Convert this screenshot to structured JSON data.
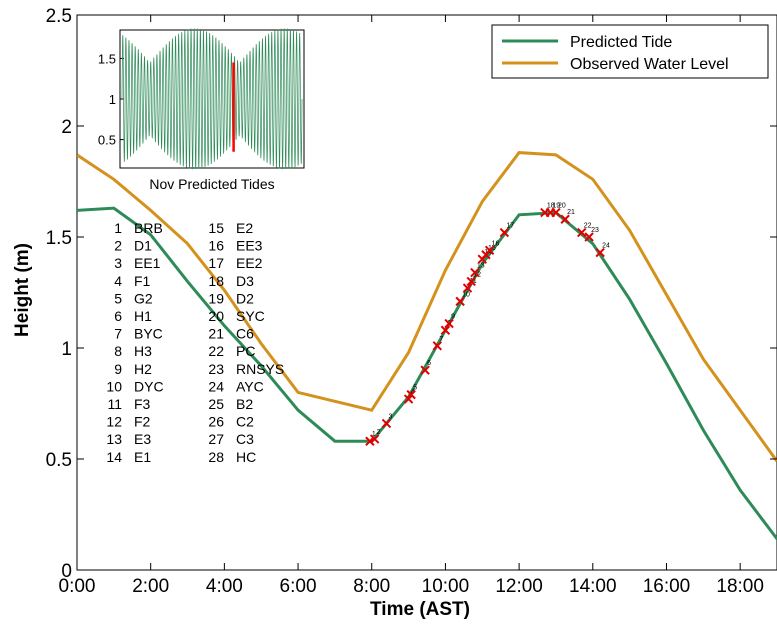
{
  "chart_data": {
    "type": "line",
    "xlabel": "Time (AST)",
    "ylabel": "Height (m)",
    "xlim": [
      0,
      19
    ],
    "ylim": [
      0,
      2.5
    ],
    "x_ticks": [
      0,
      2,
      4,
      6,
      8,
      10,
      12,
      14,
      16,
      18
    ],
    "x_tick_labels": [
      "0:00",
      "2:00",
      "4:00",
      "6:00",
      "8:00",
      "10:00",
      "12:00",
      "14:00",
      "16:00",
      "18:00"
    ],
    "y_ticks": [
      0,
      0.5,
      1,
      1.5,
      2,
      2.5
    ],
    "y_tick_labels": [
      "0",
      "0.5",
      "1",
      "1.5",
      "2",
      "2.5"
    ],
    "legend_position": "top-right",
    "series": [
      {
        "name": "Predicted Tide",
        "color": "#2e8b57",
        "x": [
          0,
          1,
          2,
          3,
          4,
          5,
          6,
          7,
          8,
          9,
          10,
          11,
          12,
          13,
          14,
          15,
          16,
          17,
          18,
          19
        ],
        "y": [
          1.62,
          1.63,
          1.51,
          1.3,
          1.1,
          0.92,
          0.72,
          0.58,
          0.58,
          0.78,
          1.08,
          1.38,
          1.6,
          1.61,
          1.47,
          1.22,
          0.93,
          0.63,
          0.36,
          0.14
        ]
      },
      {
        "name": "Observed Water Level",
        "color": "#d4921c",
        "x": [
          0,
          1,
          2,
          3,
          4,
          5,
          6,
          7,
          8,
          9,
          10,
          11,
          12,
          13,
          14,
          15,
          16,
          17,
          18,
          19
        ],
        "y": [
          1.87,
          1.76,
          1.62,
          1.47,
          1.26,
          1.02,
          0.8,
          0.76,
          0.72,
          0.98,
          1.35,
          1.66,
          1.88,
          1.87,
          1.76,
          1.53,
          1.24,
          0.95,
          0.72,
          0.49
        ]
      }
    ],
    "sample_points": [
      {
        "label": "1",
        "x": 7.95,
        "y": 0.58
      },
      {
        "label": "2",
        "x": 8.08,
        "y": 0.59
      },
      {
        "label": "3",
        "x": 8.4,
        "y": 0.66
      },
      {
        "label": "4",
        "x": 9.0,
        "y": 0.77
      },
      {
        "label": "5",
        "x": 9.07,
        "y": 0.79
      },
      {
        "label": "6",
        "x": 9.45,
        "y": 0.9
      },
      {
        "label": "7",
        "x": 9.78,
        "y": 1.01
      },
      {
        "label": "8",
        "x": 10.0,
        "y": 1.08
      },
      {
        "label": "9",
        "x": 10.1,
        "y": 1.11
      },
      {
        "label": "10",
        "x": 10.4,
        "y": 1.21
      },
      {
        "label": "11",
        "x": 10.6,
        "y": 1.27
      },
      {
        "label": "12",
        "x": 10.7,
        "y": 1.3
      },
      {
        "label": "13",
        "x": 10.8,
        "y": 1.34
      },
      {
        "label": "14",
        "x": 11.0,
        "y": 1.4
      },
      {
        "label": "15",
        "x": 11.1,
        "y": 1.42
      },
      {
        "label": "16",
        "x": 11.2,
        "y": 1.44
      },
      {
        "label": "17",
        "x": 11.6,
        "y": 1.52
      },
      {
        "label": "18",
        "x": 12.7,
        "y": 1.61
      },
      {
        "label": "19",
        "x": 12.85,
        "y": 1.61
      },
      {
        "label": "20",
        "x": 13.0,
        "y": 1.61
      },
      {
        "label": "21",
        "x": 13.25,
        "y": 1.58
      },
      {
        "label": "22",
        "x": 13.7,
        "y": 1.52
      },
      {
        "label": "23",
        "x": 13.9,
        "y": 1.5
      },
      {
        "label": "24",
        "x": 14.2,
        "y": 1.43
      }
    ],
    "station_list": [
      [
        "1",
        "BRB"
      ],
      [
        "2",
        "D1"
      ],
      [
        "3",
        "EE1"
      ],
      [
        "4",
        "F1"
      ],
      [
        "5",
        "G2"
      ],
      [
        "6",
        "H1"
      ],
      [
        "7",
        "BYC"
      ],
      [
        "8",
        "H3"
      ],
      [
        "9",
        "H2"
      ],
      [
        "10",
        "DYC"
      ],
      [
        "11",
        "F3"
      ],
      [
        "12",
        "F2"
      ],
      [
        "13",
        "E3"
      ],
      [
        "14",
        "E1"
      ],
      [
        "15",
        "E2"
      ],
      [
        "16",
        "EE3"
      ],
      [
        "17",
        "EE2"
      ],
      [
        "18",
        "D3"
      ],
      [
        "19",
        "D2"
      ],
      [
        "20",
        "SYC"
      ],
      [
        "21",
        "C6"
      ],
      [
        "22",
        "PC"
      ],
      [
        "23",
        "RNSYS"
      ],
      [
        "24",
        "AYC"
      ],
      [
        "25",
        "B2"
      ],
      [
        "26",
        "C2"
      ],
      [
        "27",
        "C3"
      ],
      [
        "28",
        "HC"
      ]
    ],
    "inset": {
      "caption": "Nov Predicted Tides",
      "ylim": [
        0.15,
        1.85
      ],
      "y_ticks": [
        0.5,
        1,
        1.5
      ],
      "y_tick_labels": [
        "0.5",
        "1",
        "1.5"
      ],
      "series_color": "#2e8b57",
      "highlight_color": "#ff0000",
      "cycles": 58,
      "highlight_fraction": 0.62
    }
  }
}
